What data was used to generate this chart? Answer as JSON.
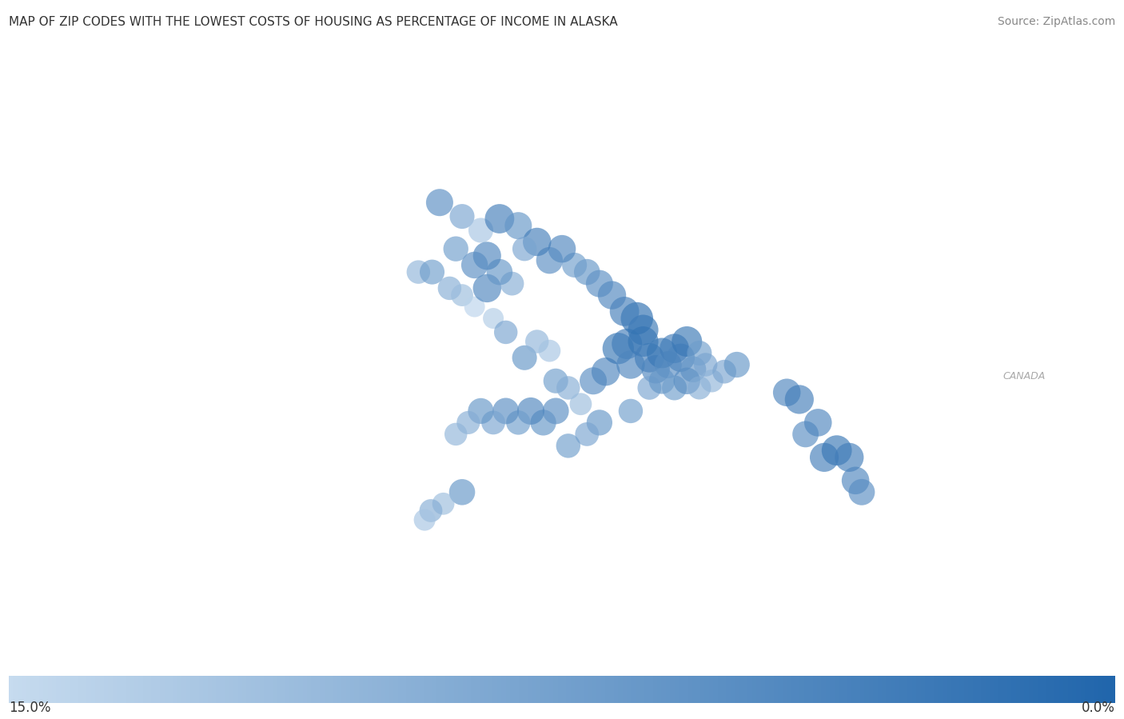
{
  "title": "MAP OF ZIP CODES WITH THE LOWEST COSTS OF HOUSING AS PERCENTAGE OF INCOME IN ALASKA",
  "source": "Source: ZipAtlas.com",
  "colorbar_left_label": "15.0%",
  "colorbar_right_label": "0.0%",
  "ocean_color": "#d5dfe8",
  "land_color": "#f5f5f5",
  "alaska_fill_color": "#e8f0f8",
  "alaska_border_color": "#aabfcf",
  "canada_border_color": "#cccccc",
  "coastline_color": "#aabfcf",
  "lake_color": "#d5dfe8",
  "title_fontsize": 11,
  "source_fontsize": 10,
  "colorbar_label_fontsize": 12,
  "dot_cmap_dark": "#2166ac",
  "dot_cmap_light": "#c6dbef",
  "dot_alpha": 0.65,
  "canada_text": "CANADA",
  "canada_lon": -118,
  "canada_lat": 60,
  "dots": [
    {
      "lon": -164.8,
      "lat": 67.5,
      "value": 0.05,
      "size": 600
    },
    {
      "lon": -163.0,
      "lat": 66.9,
      "value": 0.08,
      "size": 500
    },
    {
      "lon": -161.5,
      "lat": 66.3,
      "value": 0.12,
      "size": 500
    },
    {
      "lon": -160.0,
      "lat": 66.8,
      "value": 0.03,
      "size": 700
    },
    {
      "lon": -158.5,
      "lat": 66.5,
      "value": 0.06,
      "size": 600
    },
    {
      "lon": -166.5,
      "lat": 64.5,
      "value": 0.1,
      "size": 450
    },
    {
      "lon": -165.4,
      "lat": 64.5,
      "value": 0.07,
      "size": 500
    },
    {
      "lon": -164.0,
      "lat": 63.8,
      "value": 0.09,
      "size": 450
    },
    {
      "lon": -163.0,
      "lat": 63.5,
      "value": 0.11,
      "size": 400
    },
    {
      "lon": -162.0,
      "lat": 63.0,
      "value": 0.14,
      "size": 350
    },
    {
      "lon": -161.0,
      "lat": 63.8,
      "value": 0.04,
      "size": 650
    },
    {
      "lon": -160.5,
      "lat": 62.5,
      "value": 0.13,
      "size": 350
    },
    {
      "lon": -159.5,
      "lat": 61.9,
      "value": 0.08,
      "size": 450
    },
    {
      "lon": -158.0,
      "lat": 60.8,
      "value": 0.06,
      "size": 500
    },
    {
      "lon": -157.0,
      "lat": 61.5,
      "value": 0.1,
      "size": 450
    },
    {
      "lon": -156.0,
      "lat": 61.1,
      "value": 0.12,
      "size": 400
    },
    {
      "lon": -155.5,
      "lat": 59.8,
      "value": 0.07,
      "size": 500
    },
    {
      "lon": -154.5,
      "lat": 59.5,
      "value": 0.09,
      "size": 450
    },
    {
      "lon": -153.5,
      "lat": 58.8,
      "value": 0.11,
      "size": 400
    },
    {
      "lon": -152.5,
      "lat": 59.8,
      "value": 0.05,
      "size": 600
    },
    {
      "lon": -151.5,
      "lat": 60.2,
      "value": 0.04,
      "size": 650
    },
    {
      "lon": -150.5,
      "lat": 61.2,
      "value": 0.02,
      "size": 800
    },
    {
      "lon": -149.8,
      "lat": 61.4,
      "value": 0.03,
      "size": 750
    },
    {
      "lon": -149.5,
      "lat": 60.5,
      "value": 0.04,
      "size": 650
    },
    {
      "lon": -148.5,
      "lat": 61.5,
      "value": 0.02,
      "size": 750
    },
    {
      "lon": -148.0,
      "lat": 60.8,
      "value": 0.03,
      "size": 700
    },
    {
      "lon": -147.5,
      "lat": 60.3,
      "value": 0.04,
      "size": 650
    },
    {
      "lon": -147.0,
      "lat": 61.0,
      "value": 0.02,
      "size": 750
    },
    {
      "lon": -146.5,
      "lat": 60.5,
      "value": 0.05,
      "size": 600
    },
    {
      "lon": -146.0,
      "lat": 61.2,
      "value": 0.03,
      "size": 700
    },
    {
      "lon": -145.5,
      "lat": 60.8,
      "value": 0.04,
      "size": 650
    },
    {
      "lon": -145.0,
      "lat": 61.5,
      "value": 0.02,
      "size": 750
    },
    {
      "lon": -144.5,
      "lat": 60.3,
      "value": 0.06,
      "size": 550
    },
    {
      "lon": -144.0,
      "lat": 61.0,
      "value": 0.07,
      "size": 500
    },
    {
      "lon": -143.5,
      "lat": 60.5,
      "value": 0.08,
      "size": 450
    },
    {
      "lon": -163.0,
      "lat": 55.0,
      "value": 0.06,
      "size": 550
    },
    {
      "lon": -149.0,
      "lat": 62.5,
      "value": 0.01,
      "size": 850
    },
    {
      "lon": -148.5,
      "lat": 62.0,
      "value": 0.02,
      "size": 750
    },
    {
      "lon": -150.0,
      "lat": 62.8,
      "value": 0.03,
      "size": 700
    },
    {
      "lon": -151.0,
      "lat": 63.5,
      "value": 0.04,
      "size": 650
    },
    {
      "lon": -152.0,
      "lat": 64.0,
      "value": 0.05,
      "size": 600
    },
    {
      "lon": -153.0,
      "lat": 64.5,
      "value": 0.06,
      "size": 550
    },
    {
      "lon": -154.0,
      "lat": 64.8,
      "value": 0.07,
      "size": 500
    },
    {
      "lon": -155.0,
      "lat": 65.5,
      "value": 0.04,
      "size": 620
    },
    {
      "lon": -156.0,
      "lat": 65.0,
      "value": 0.05,
      "size": 580
    },
    {
      "lon": -157.0,
      "lat": 65.8,
      "value": 0.03,
      "size": 650
    },
    {
      "lon": -158.0,
      "lat": 65.5,
      "value": 0.08,
      "size": 480
    },
    {
      "lon": -159.0,
      "lat": 64.0,
      "value": 0.09,
      "size": 460
    },
    {
      "lon": -160.0,
      "lat": 64.5,
      "value": 0.06,
      "size": 550
    },
    {
      "lon": -161.0,
      "lat": 65.2,
      "value": 0.04,
      "size": 640
    },
    {
      "lon": -162.0,
      "lat": 64.8,
      "value": 0.05,
      "size": 580
    },
    {
      "lon": -163.5,
      "lat": 65.5,
      "value": 0.07,
      "size": 510
    },
    {
      "lon": -148.0,
      "lat": 59.5,
      "value": 0.08,
      "size": 460
    },
    {
      "lon": -147.0,
      "lat": 59.8,
      "value": 0.06,
      "size": 550
    },
    {
      "lon": -146.0,
      "lat": 59.5,
      "value": 0.07,
      "size": 500
    },
    {
      "lon": -145.0,
      "lat": 59.8,
      "value": 0.05,
      "size": 580
    },
    {
      "lon": -144.0,
      "lat": 59.5,
      "value": 0.09,
      "size": 440
    },
    {
      "lon": -143.0,
      "lat": 59.8,
      "value": 0.1,
      "size": 420
    },
    {
      "lon": -142.0,
      "lat": 60.2,
      "value": 0.08,
      "size": 460
    },
    {
      "lon": -141.0,
      "lat": 60.5,
      "value": 0.06,
      "size": 540
    },
    {
      "lon": -137.0,
      "lat": 59.3,
      "value": 0.04,
      "size": 620
    },
    {
      "lon": -136.0,
      "lat": 59.0,
      "value": 0.03,
      "size": 680
    },
    {
      "lon": -135.5,
      "lat": 57.5,
      "value": 0.05,
      "size": 560
    },
    {
      "lon": -134.5,
      "lat": 58.0,
      "value": 0.04,
      "size": 620
    },
    {
      "lon": -134.0,
      "lat": 56.5,
      "value": 0.03,
      "size": 680
    },
    {
      "lon": -133.0,
      "lat": 56.8,
      "value": 0.02,
      "size": 740
    },
    {
      "lon": -132.0,
      "lat": 56.5,
      "value": 0.03,
      "size": 680
    },
    {
      "lon": -131.5,
      "lat": 55.5,
      "value": 0.04,
      "size": 620
    },
    {
      "lon": -131.0,
      "lat": 55.0,
      "value": 0.05,
      "size": 560
    },
    {
      "lon": -149.5,
      "lat": 58.5,
      "value": 0.07,
      "size": 480
    },
    {
      "lon": -152.0,
      "lat": 58.0,
      "value": 0.06,
      "size": 540
    },
    {
      "lon": -153.0,
      "lat": 57.5,
      "value": 0.08,
      "size": 460
    },
    {
      "lon": -154.5,
      "lat": 57.0,
      "value": 0.07,
      "size": 480
    },
    {
      "lon": -155.5,
      "lat": 58.5,
      "value": 0.05,
      "size": 560
    },
    {
      "lon": -156.5,
      "lat": 58.0,
      "value": 0.06,
      "size": 540
    },
    {
      "lon": -157.5,
      "lat": 58.5,
      "value": 0.04,
      "size": 600
    },
    {
      "lon": -158.5,
      "lat": 58.0,
      "value": 0.07,
      "size": 480
    },
    {
      "lon": -159.5,
      "lat": 58.5,
      "value": 0.05,
      "size": 560
    },
    {
      "lon": -160.5,
      "lat": 58.0,
      "value": 0.08,
      "size": 460
    },
    {
      "lon": -161.5,
      "lat": 58.5,
      "value": 0.06,
      "size": 540
    },
    {
      "lon": -162.5,
      "lat": 58.0,
      "value": 0.09,
      "size": 440
    },
    {
      "lon": -163.5,
      "lat": 57.5,
      "value": 0.1,
      "size": 420
    },
    {
      "lon": -164.5,
      "lat": 54.5,
      "value": 0.11,
      "size": 400
    },
    {
      "lon": -165.5,
      "lat": 54.2,
      "value": 0.09,
      "size": 430
    },
    {
      "lon": -166.0,
      "lat": 53.8,
      "value": 0.12,
      "size": 380
    }
  ]
}
